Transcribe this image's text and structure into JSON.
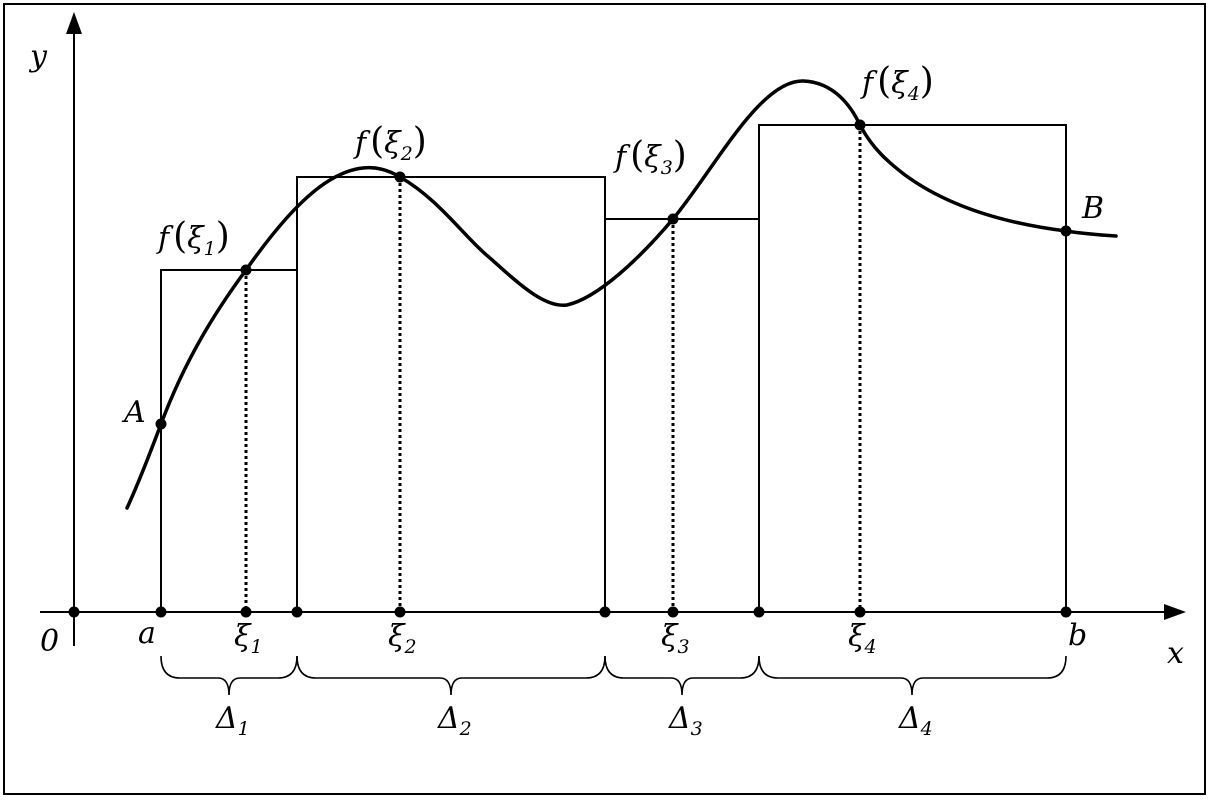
{
  "axes": {
    "y_label": "y",
    "x_label": "x",
    "origin_label": "0"
  },
  "endpoints": {
    "a": "a",
    "b": "b",
    "A": "A",
    "B": "B"
  },
  "func": {
    "name": "f"
  },
  "xi": [
    {
      "sym": "ξ",
      "sub": "1"
    },
    {
      "sym": "ξ",
      "sub": "2"
    },
    {
      "sym": "ξ",
      "sub": "3"
    },
    {
      "sym": "ξ",
      "sub": "4"
    }
  ],
  "deltas": [
    {
      "sym": "Δ",
      "sub": "1"
    },
    {
      "sym": "Δ",
      "sub": "2"
    },
    {
      "sym": "Δ",
      "sub": "3"
    },
    {
      "sym": "Δ",
      "sub": "4"
    }
  ]
}
